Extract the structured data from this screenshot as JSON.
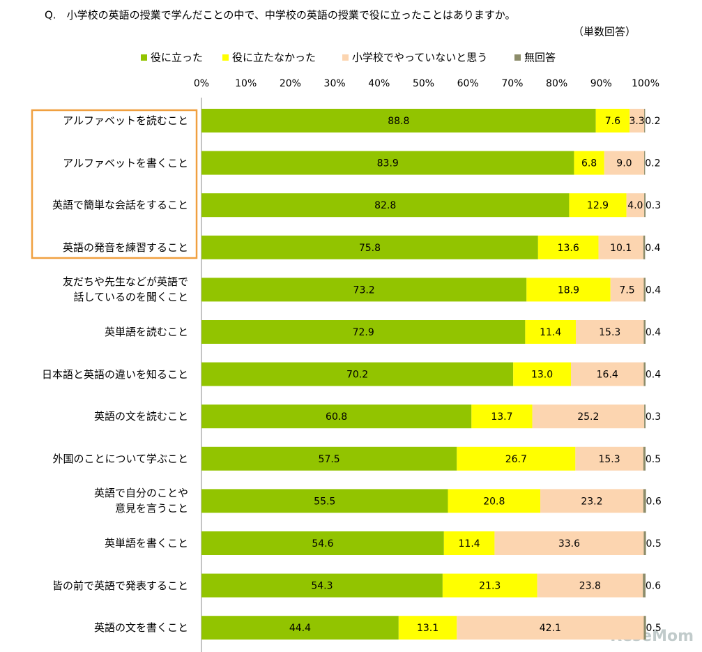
{
  "chart_data": {
    "type": "stacked-bar-horizontal",
    "title": "Q.　小学校の英語の授業で学んだことの中で、中学校の英語の授業で役に立ったことはありますか。",
    "subtitle": "（単数回答）",
    "watermark": "ReseMom",
    "categories": [
      "アルファベットを読むこと",
      "アルファベットを書くこと",
      "英語で簡単な会話をすること",
      "英語の発音を練習すること",
      "友だちや先生などが英語で\n話しているのを聞くこと",
      "英単語を読むこと",
      "日本語と英語の違いを知ること",
      "英語の文を読むこと",
      "外国のことについて学ぶこと",
      "英語で自分のことや\n意見を言うこと",
      "英単語を書くこと",
      "皆の前で英語で発表すること",
      "英語の文を書くこと"
    ],
    "series": [
      {
        "name": "役に立った",
        "color": "#92c400",
        "values": [
          88.8,
          83.9,
          82.8,
          75.8,
          73.2,
          72.9,
          70.2,
          60.8,
          57.5,
          55.5,
          54.6,
          54.3,
          44.4
        ]
      },
      {
        "name": "役に立たなかった",
        "color": "#ffff00",
        "values": [
          7.6,
          6.8,
          12.9,
          13.6,
          18.9,
          11.4,
          13.0,
          13.7,
          26.7,
          20.8,
          11.4,
          21.3,
          13.1
        ],
        "value_labels": [
          "7.6",
          "6.8",
          "12.9",
          "13.6",
          "18.9",
          "11.4",
          "13.0",
          "13.7",
          "26.7",
          "20.8",
          "11.4",
          "21.3",
          "13.1"
        ]
      },
      {
        "name": "小学校でやっていないと思う",
        "color": "#fcd5b0",
        "values": [
          3.3,
          9.0,
          4.0,
          10.1,
          7.5,
          15.3,
          16.4,
          25.2,
          15.3,
          23.2,
          33.6,
          23.8,
          42.1
        ],
        "value_labels": [
          "3.3",
          "9.0",
          "4.0",
          "10.1",
          "7.5",
          "15.3",
          "16.4",
          "25.2",
          "15.3",
          "23.2",
          "33.6",
          "23.8",
          "42.1"
        ]
      },
      {
        "name": "無回答",
        "color": "#8c8c6a",
        "values": [
          0.2,
          0.2,
          0.3,
          0.4,
          0.4,
          0.4,
          0.4,
          0.3,
          0.5,
          0.6,
          0.5,
          0.6,
          0.5
        ]
      }
    ],
    "xlim": [
      0,
      100
    ],
    "xticks": [
      {
        "value": 0,
        "label": "0%"
      },
      {
        "value": 10,
        "label": "10%"
      },
      {
        "value": 20,
        "label": "20%"
      },
      {
        "value": 30,
        "label": "30%"
      },
      {
        "value": 40,
        "label": "40%"
      },
      {
        "value": 50,
        "label": "50%"
      },
      {
        "value": 60,
        "label": "60%"
      },
      {
        "value": 70,
        "label": "70%"
      },
      {
        "value": 80,
        "label": "80%"
      },
      {
        "value": 90,
        "label": "90%"
      },
      {
        "value": 100,
        "label": "100%"
      }
    ]
  }
}
